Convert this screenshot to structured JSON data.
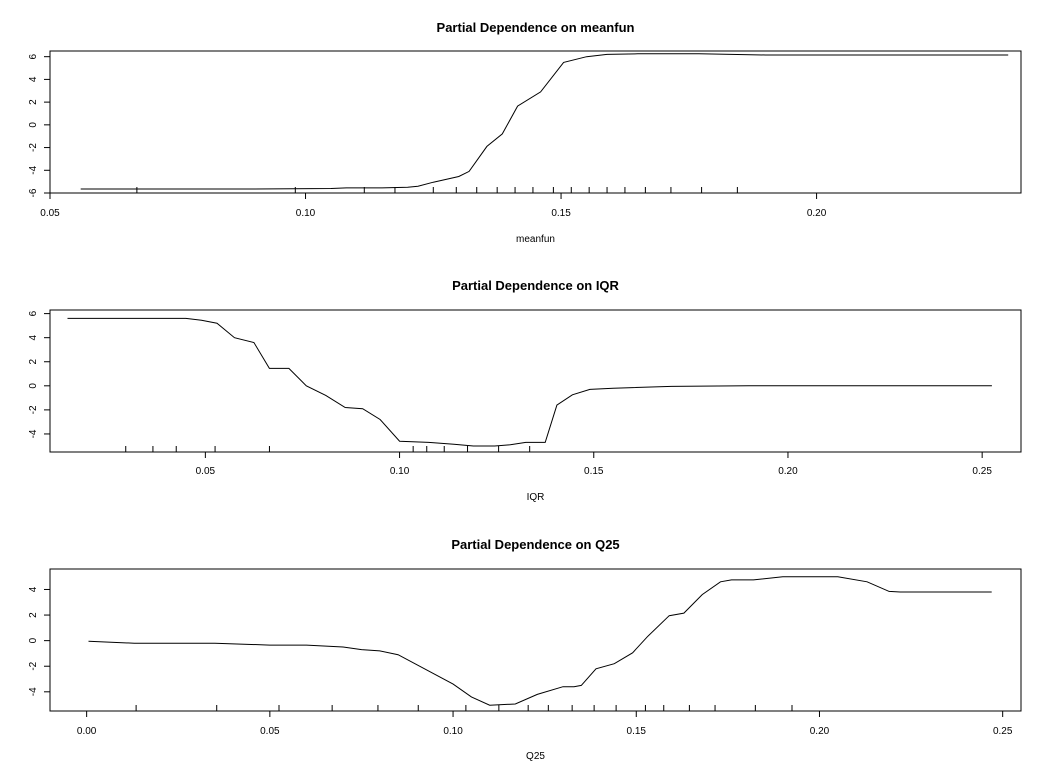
{
  "chart_data": [
    {
      "type": "line",
      "title": "Partial Dependence on meanfun",
      "xlabel": "meanfun",
      "ylabel": "",
      "xlim": [
        0.05,
        0.24
      ],
      "ylim": [
        -6,
        6.5
      ],
      "xticks": [
        "0.05",
        "0.10",
        "0.15",
        "0.20"
      ],
      "yticks": [
        "-6",
        "-4",
        "-2",
        "0",
        "2",
        "4",
        "6"
      ],
      "grid": false,
      "series": [
        {
          "x": [
            0.056,
            0.07,
            0.09,
            0.105,
            0.108,
            0.115,
            0.12,
            0.122,
            0.125,
            0.13,
            0.132,
            0.1355,
            0.1385,
            0.1415,
            0.146,
            0.1505,
            0.155,
            0.159,
            0.165,
            0.177,
            0.19,
            0.21,
            0.2375
          ],
          "values": [
            -5.65,
            -5.65,
            -5.65,
            -5.6,
            -5.55,
            -5.55,
            -5.5,
            -5.4,
            -5.05,
            -4.55,
            -4.1,
            -1.9,
            -0.8,
            1.65,
            2.9,
            5.5,
            6.0,
            6.2,
            6.25,
            6.25,
            6.15,
            6.15,
            6.15
          ]
        }
      ],
      "rug": [
        0.067,
        0.098,
        0.1115,
        0.1175,
        0.125,
        0.1295,
        0.1335,
        0.1375,
        0.141,
        0.1445,
        0.1485,
        0.152,
        0.1555,
        0.159,
        0.1625,
        0.1665,
        0.1715,
        0.1775,
        0.1845
      ]
    },
    {
      "type": "line",
      "title": "Partial Dependence on IQR",
      "xlabel": "IQR",
      "ylabel": "",
      "xlim": [
        0.01,
        0.26
      ],
      "ylim": [
        -5.5,
        6.3
      ],
      "xticks": [
        "0.05",
        "0.10",
        "0.15",
        "0.20",
        "0.25"
      ],
      "yticks": [
        "-4",
        "-2",
        "0",
        "2",
        "4",
        "6"
      ],
      "grid": false,
      "series": [
        {
          "x": [
            0.0145,
            0.045,
            0.049,
            0.053,
            0.0575,
            0.0625,
            0.0665,
            0.0715,
            0.076,
            0.081,
            0.086,
            0.0905,
            0.095,
            0.1,
            0.1075,
            0.114,
            0.119,
            0.1245,
            0.1285,
            0.1325,
            0.1375,
            0.1405,
            0.1445,
            0.149,
            0.155,
            0.16,
            0.17,
            0.19,
            0.21,
            0.2525
          ],
          "values": [
            5.6,
            5.6,
            5.45,
            5.2,
            4.0,
            3.6,
            1.45,
            1.45,
            0.0,
            -0.8,
            -1.8,
            -1.9,
            -2.8,
            -4.6,
            -4.7,
            -4.85,
            -5.0,
            -5.0,
            -4.9,
            -4.7,
            -4.7,
            -1.6,
            -0.75,
            -0.3,
            -0.2,
            -0.15,
            -0.05,
            0.0,
            0.0,
            0.0
          ]
        }
      ],
      "rug": [
        0.0295,
        0.0365,
        0.0425,
        0.0525,
        0.0665,
        0.1035,
        0.107,
        0.1115,
        0.1175,
        0.1255,
        0.1335
      ]
    },
    {
      "type": "line",
      "title": "Partial Dependence on Q25",
      "xlabel": "Q25",
      "ylabel": "",
      "xlim": [
        -0.01,
        0.255
      ],
      "ylim": [
        -5.5,
        5.6
      ],
      "xticks": [
        "0.00",
        "0.05",
        "0.10",
        "0.15",
        "0.20",
        "0.25"
      ],
      "yticks": [
        "-4",
        "-2",
        "0",
        "2",
        "4"
      ],
      "grid": false,
      "series": [
        {
          "x": [
            0.0005,
            0.013,
            0.035,
            0.05,
            0.06,
            0.07,
            0.075,
            0.08,
            0.085,
            0.1,
            0.105,
            0.11,
            0.117,
            0.123,
            0.13,
            0.133,
            0.135,
            0.139,
            0.144,
            0.149,
            0.153,
            0.159,
            0.163,
            0.168,
            0.173,
            0.176,
            0.182,
            0.19,
            0.205,
            0.213,
            0.219,
            0.222,
            0.247
          ],
          "values": [
            -0.05,
            -0.2,
            -0.2,
            -0.35,
            -0.35,
            -0.5,
            -0.7,
            -0.8,
            -1.1,
            -3.4,
            -4.4,
            -5.05,
            -4.95,
            -4.2,
            -3.6,
            -3.6,
            -3.5,
            -2.2,
            -1.8,
            -0.95,
            0.3,
            1.95,
            2.15,
            3.6,
            4.6,
            4.75,
            4.75,
            5.0,
            5.0,
            4.6,
            3.85,
            3.8,
            3.8
          ]
        }
      ],
      "rug": [
        0.0135,
        0.0355,
        0.0525,
        0.067,
        0.0795,
        0.0905,
        0.1035,
        0.1125,
        0.1205,
        0.126,
        0.1325,
        0.1385,
        0.1445,
        0.1525,
        0.1575,
        0.1645,
        0.1715,
        0.1825,
        0.1925
      ]
    }
  ]
}
